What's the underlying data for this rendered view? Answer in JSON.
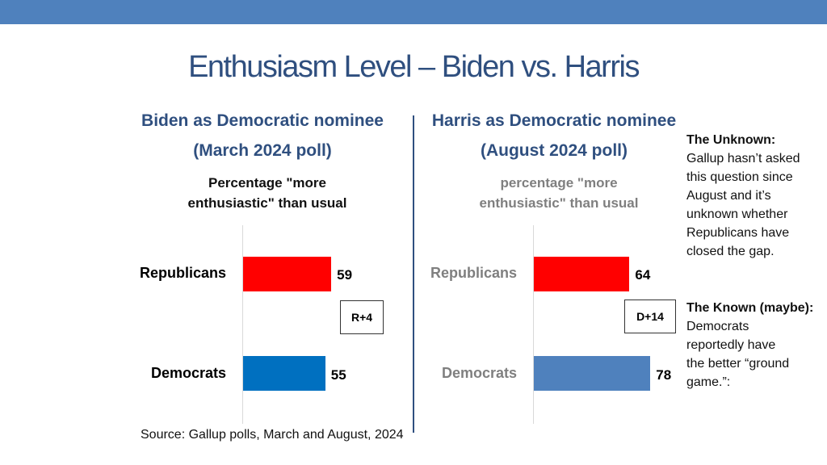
{
  "colors": {
    "band": "#4f81bd",
    "title": "#2f4f7f",
    "biden_rep": "#ff0000",
    "biden_dem": "#0070c0",
    "harris_rep": "#ff0000",
    "harris_dem": "#4f81bd",
    "muted": "#7f7f7f",
    "dark": "#111111"
  },
  "title": "Enthusiasm Level – Biden vs. Harris",
  "chart_data": [
    {
      "type": "bar",
      "orientation": "horizontal",
      "heading": "Biden as Democratic nominee",
      "subheading": "(March 2024 poll)",
      "title": "Percentage \"more enthusiastic\" than usual",
      "categories": [
        "Republicans",
        "Democrats"
      ],
      "values": [
        59,
        55
      ],
      "value_labels": [
        "59",
        "55"
      ],
      "gap_label": "R+4",
      "xlim": [
        0,
        100
      ]
    },
    {
      "type": "bar",
      "orientation": "horizontal",
      "heading": "Harris as Democratic nominee",
      "subheading": "(August 2024 poll)",
      "title": "percentage \"more enthusiastic\" than usual",
      "categories": [
        "Republicans",
        "Democrats"
      ],
      "values": [
        64,
        78
      ],
      "value_labels": [
        "64",
        "78"
      ],
      "gap_label": "D+14",
      "xlim": [
        0,
        100
      ]
    }
  ],
  "notes": {
    "unknown_heading": "The Unknown:",
    "unknown_text": "Gallup hasn’t asked this question since August and it’s unknown whether Republicans have closed the gap.",
    "known_heading": "The Known (maybe):",
    "known_text": "Democrats reportedly have the better “ground game.”:"
  },
  "source": "Source: Gallup polls, March and August, 2024"
}
